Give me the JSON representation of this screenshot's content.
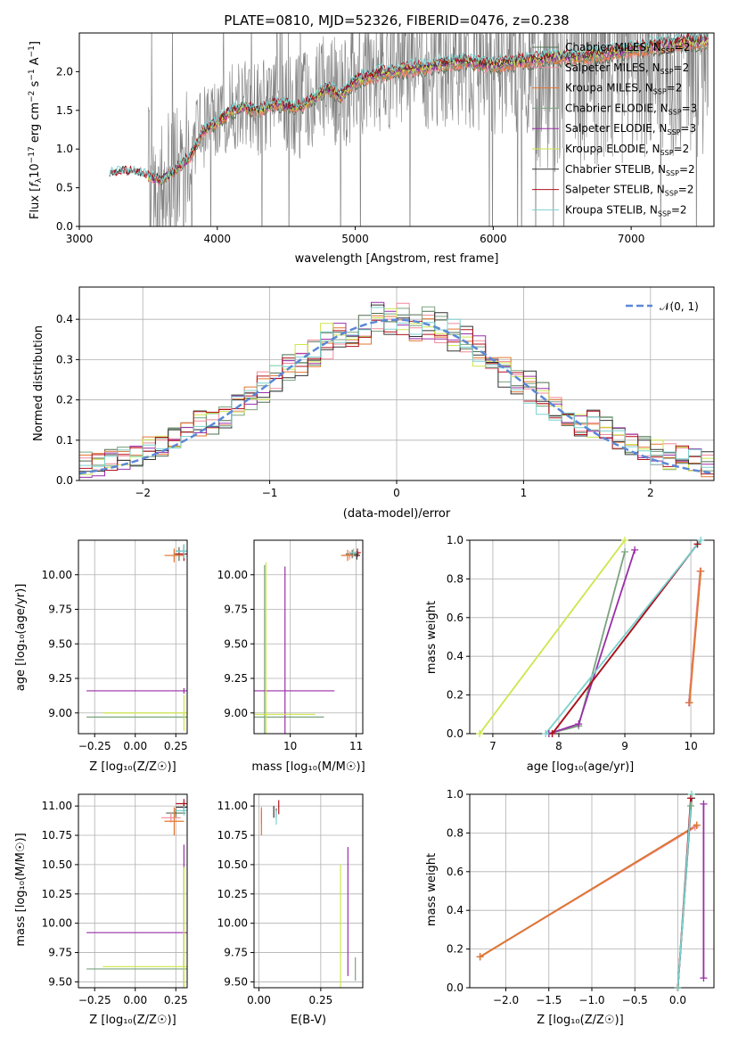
{
  "colors": {
    "grid": "#b0b0b0",
    "spectrum": "#7f7f7f",
    "gauss": "#5b88d6",
    "models": [
      "#4f6f52",
      "#f08a9a",
      "#e2762f",
      "#7aa37f",
      "#9a2ea7",
      "#cde64a",
      "#333333",
      "#b3121d",
      "#79d1cf"
    ]
  },
  "model_names": [
    "Chabrier MILES",
    "Salpeter MILES",
    "Kroupa MILES",
    "Chabrier ELODIE",
    "Salpeter ELODIE",
    "Kroupa ELODIE",
    "Chabrier STELIB",
    "Salpeter STELIB",
    "Kroupa STELIB"
  ],
  "nssp_suffix": [
    "=2",
    "=2",
    "=2",
    "=3",
    "=3",
    "=2",
    "=2",
    "=2",
    "=2"
  ],
  "chart_data": [
    {
      "id": "spectrum",
      "type": "line",
      "title": "PLATE=0810, MJD=52326, FIBERID=0476, z=0.238",
      "xlabel": "wavelength [Angstrom, rest frame]",
      "ylabel_parts": {
        "a": "Flux [",
        "b": "f",
        "c": "λ",
        "d": "10",
        "e": "−17",
        "f": " erg cm",
        "g": "−2",
        "h": " s",
        "i": "−1",
        "j": " A",
        "k": "−1",
        "l": "]"
      },
      "legend_sub": "SSP",
      "legend_prefix": "N",
      "xlim": [
        3000,
        7600
      ],
      "ylim": [
        0,
        2.5
      ],
      "xticks": [
        3000,
        4000,
        5000,
        6000,
        7000
      ],
      "yticks": [
        0.0,
        0.5,
        1.0,
        1.5,
        2.0
      ],
      "continuum": [
        [
          3220,
          0.7
        ],
        [
          3400,
          0.72
        ],
        [
          3600,
          0.6
        ],
        [
          3700,
          0.75
        ],
        [
          3800,
          0.9
        ],
        [
          3900,
          1.25
        ],
        [
          4000,
          1.35
        ],
        [
          4100,
          1.5
        ],
        [
          4200,
          1.55
        ],
        [
          4300,
          1.5
        ],
        [
          4400,
          1.6
        ],
        [
          4600,
          1.55
        ],
        [
          4800,
          1.8
        ],
        [
          4900,
          1.7
        ],
        [
          5000,
          1.9
        ],
        [
          5200,
          2.0
        ],
        [
          5400,
          2.05
        ],
        [
          5600,
          2.1
        ],
        [
          5800,
          2.15
        ],
        [
          6000,
          2.1
        ],
        [
          6200,
          2.15
        ],
        [
          6400,
          2.2
        ],
        [
          6600,
          2.2
        ],
        [
          6800,
          2.25
        ],
        [
          7000,
          2.3
        ],
        [
          7200,
          2.35
        ],
        [
          7400,
          2.4
        ]
      ]
    },
    {
      "id": "residuals",
      "type": "histogram",
      "xlabel": "(data-model)/error",
      "ylabel": "Normed distribution",
      "legend": "𝒩(0, 1)",
      "xlim": [
        -2.5,
        2.5
      ],
      "ylim": [
        0,
        0.48
      ],
      "xticks": [
        -2,
        -1,
        0,
        1,
        2
      ],
      "yticks": [
        0.0,
        0.1,
        0.2,
        0.3,
        0.4
      ],
      "bin_width": 0.1,
      "gauss_mean": 0,
      "gauss_sigma": 1
    },
    {
      "id": "z-age",
      "type": "scatter-errorbar",
      "xlabel": "Z [log₁₀(Z/Z☉)]",
      "ylabel": "age  [log₁₀(age/yr)]",
      "xlim": [
        -0.35,
        0.32
      ],
      "ylim": [
        8.85,
        10.25
      ],
      "xticks": [
        -0.25,
        0.0,
        0.25
      ],
      "xticklabels": [
        "−0.25",
        "0.00",
        "0.25"
      ],
      "yticks": [
        9.0,
        9.25,
        9.5,
        9.75,
        10.0
      ],
      "yticklabels": [
        "9.00",
        "9.25",
        "9.50",
        "9.75",
        "10.00"
      ],
      "points": [
        {
          "m": 0,
          "x": 0.27,
          "y": 10.15,
          "ex": 0.03,
          "ey": 0.05
        },
        {
          "m": 1,
          "x": 0.24,
          "y": 10.14,
          "ex": 0.05,
          "ey": 0.04
        },
        {
          "m": 2,
          "x": 0.24,
          "y": 10.14,
          "ex": 0.06,
          "ey": 0.05
        },
        {
          "m": 3,
          "x": 0.3,
          "y": 8.97,
          "ex": 0.6,
          "ey": 0.02
        },
        {
          "m": 4,
          "x": 0.3,
          "y": 9.16,
          "ex": 0.6,
          "ey": 0.02
        },
        {
          "m": 5,
          "x": 0.3,
          "y": 9.0,
          "ex": 0.5,
          "ey": 0.13
        },
        {
          "m": 6,
          "x": 0.3,
          "y": 10.17,
          "ex": 0.05,
          "ey": 0.05
        },
        {
          "m": 7,
          "x": 0.3,
          "y": 10.15,
          "ex": 0.05,
          "ey": 0.05
        },
        {
          "m": 8,
          "x": 0.3,
          "y": 10.17,
          "ex": 0.05,
          "ey": 0.05
        }
      ]
    },
    {
      "id": "mass-age",
      "type": "scatter-errorbar",
      "xlabel": "mass [log₁₀(M/M☉)]",
      "xlim": [
        9.45,
        11.1
      ],
      "ylim": [
        8.85,
        10.25
      ],
      "xticks": [
        10,
        11
      ],
      "xticklabels": [
        "10",
        "11"
      ],
      "yticks": [
        9.0,
        9.25,
        9.5,
        9.75,
        10.0
      ],
      "yticklabels": [
        "9.00",
        "9.25",
        "9.50",
        "9.75",
        "10.00"
      ],
      "points": [
        {
          "m": 0,
          "x": 10.94,
          "y": 10.15,
          "ex": 0.1,
          "ey": 0.03
        },
        {
          "m": 1,
          "x": 10.9,
          "y": 10.14,
          "ex": 0.1,
          "ey": 0.03
        },
        {
          "m": 2,
          "x": 10.87,
          "y": 10.14,
          "ex": 0.1,
          "ey": 0.04
        },
        {
          "m": 3,
          "x": 9.61,
          "y": 8.97,
          "ex": 0.9,
          "ey": 1.1
        },
        {
          "m": 4,
          "x": 9.92,
          "y": 9.16,
          "ex": 0.75,
          "ey": 0.9
        },
        {
          "m": 5,
          "x": 9.63,
          "y": 8.99,
          "ex": 0.75,
          "ey": 1.1
        },
        {
          "m": 6,
          "x": 11.01,
          "y": 10.14,
          "ex": 0.05,
          "ey": 0.03
        },
        {
          "m": 7,
          "x": 11.02,
          "y": 10.16,
          "ex": 0.05,
          "ey": 0.03
        },
        {
          "m": 8,
          "x": 10.96,
          "y": 10.16,
          "ex": 0.05,
          "ey": 0.03
        }
      ]
    },
    {
      "id": "age-weight",
      "type": "line",
      "xlabel": "age  [log₁₀(age/yr)]",
      "ylabel": "mass weight",
      "xlim": [
        6.65,
        10.35
      ],
      "ylim": [
        0,
        1.0
      ],
      "xticks": [
        7,
        8,
        9,
        10
      ],
      "yticks": [
        0.0,
        0.2,
        0.4,
        0.6,
        0.8,
        1.0
      ],
      "lines": [
        {
          "m": 0,
          "x": [
            9.97,
            10.15
          ],
          "y": [
            0.16,
            0.84
          ]
        },
        {
          "m": 1,
          "x": [
            9.97,
            10.14
          ],
          "y": [
            0.16,
            0.84
          ]
        },
        {
          "m": 2,
          "x": [
            9.98,
            10.15
          ],
          "y": [
            0.16,
            0.84
          ]
        },
        {
          "m": 3,
          "x": [
            7.85,
            8.3,
            9.0
          ],
          "y": [
            0.0,
            0.04,
            0.94
          ]
        },
        {
          "m": 4,
          "x": [
            7.85,
            8.3,
            9.15
          ],
          "y": [
            0.0,
            0.05,
            0.95
          ]
        },
        {
          "m": 5,
          "x": [
            6.8,
            9.0
          ],
          "y": [
            0.0,
            1.0
          ]
        },
        {
          "m": 6,
          "x": [
            7.9,
            10.1
          ],
          "y": [
            0.0,
            0.98
          ]
        },
        {
          "m": 7,
          "x": [
            7.9,
            10.1
          ],
          "y": [
            0.0,
            0.98
          ]
        },
        {
          "m": 8,
          "x": [
            7.8,
            10.15
          ],
          "y": [
            0.0,
            1.0
          ]
        }
      ]
    },
    {
      "id": "z-mass",
      "type": "scatter-errorbar",
      "xlabel": "Z [log₁₀(Z/Z☉)]",
      "ylabel": "mass [log₁₀(M/M☉)]",
      "xlim": [
        -0.35,
        0.32
      ],
      "ylim": [
        9.45,
        11.1
      ],
      "xticks": [
        -0.25,
        0.0,
        0.25
      ],
      "xticklabels": [
        "−0.25",
        "0.00",
        "0.25"
      ],
      "yticks": [
        9.5,
        9.75,
        10.0,
        10.25,
        10.5,
        10.75,
        11.0
      ],
      "yticklabels": [
        "9.50",
        "9.75",
        "10.00",
        "10.25",
        "10.50",
        "10.75",
        "11.00"
      ],
      "points": [
        {
          "m": 0,
          "x": 0.25,
          "y": 10.94,
          "ex": 0.06,
          "ey": 0.04
        },
        {
          "m": 1,
          "x": 0.22,
          "y": 10.9,
          "ex": 0.06,
          "ey": 0.04
        },
        {
          "m": 2,
          "x": 0.24,
          "y": 10.87,
          "ex": 0.06,
          "ey": 0.12
        },
        {
          "m": 3,
          "x": 0.3,
          "y": 9.61,
          "ex": 0.6,
          "ey": 0.1
        },
        {
          "m": 4,
          "x": 0.3,
          "y": 9.92,
          "ex": 0.6,
          "ey": 0.75
        },
        {
          "m": 5,
          "x": 0.3,
          "y": 9.63,
          "ex": 0.5,
          "ey": 0.85
        },
        {
          "m": 6,
          "x": 0.3,
          "y": 10.99,
          "ex": 0.05,
          "ey": 0.04
        },
        {
          "m": 7,
          "x": 0.3,
          "y": 11.02,
          "ex": 0.05,
          "ey": 0.04
        },
        {
          "m": 8,
          "x": 0.3,
          "y": 10.96,
          "ex": 0.05,
          "ey": 0.04
        }
      ]
    },
    {
      "id": "ebv-mass",
      "type": "scatter-errorbar",
      "xlabel": "E(B-V)",
      "xlim": [
        -0.02,
        0.42
      ],
      "ylim": [
        9.45,
        11.1
      ],
      "xticks": [
        0.0,
        0.25
      ],
      "xticklabels": [
        "0.00",
        "0.25"
      ],
      "yticks": [
        9.5,
        9.75,
        10.0,
        10.25,
        10.5,
        10.75,
        11.0
      ],
      "yticklabels": [
        "9.50",
        "9.75",
        "10.00",
        "10.25",
        "10.50",
        "10.75",
        "11.00"
      ],
      "points": [
        {
          "m": 0,
          "x": 0.07,
          "y": 10.94,
          "ex": 0.0,
          "ey": 0.04
        },
        {
          "m": 1,
          "x": 0.01,
          "y": 10.9,
          "ex": 0.0,
          "ey": 0.06
        },
        {
          "m": 2,
          "x": 0.01,
          "y": 10.87,
          "ex": 0.0,
          "ey": 0.12
        },
        {
          "m": 3,
          "x": 0.39,
          "y": 9.61,
          "ex": 0.0,
          "ey": 0.1
        },
        {
          "m": 4,
          "x": 0.36,
          "y": 10.1,
          "ex": 0.0,
          "ey": 0.55
        },
        {
          "m": 5,
          "x": 0.33,
          "y": 9.95,
          "ex": 0.0,
          "ey": 0.55
        },
        {
          "m": 6,
          "x": 0.06,
          "y": 10.95,
          "ex": 0.0,
          "ey": 0.05
        },
        {
          "m": 7,
          "x": 0.08,
          "y": 10.99,
          "ex": 0.0,
          "ey": 0.06
        },
        {
          "m": 8,
          "x": 0.07,
          "y": 10.9,
          "ex": 0.0,
          "ey": 0.06
        }
      ]
    },
    {
      "id": "z-weight",
      "type": "line",
      "xlabel": "Z [log₁₀(Z/Z☉)]",
      "ylabel": "mass weight",
      "xlim": [
        -2.42,
        0.42
      ],
      "ylim": [
        0,
        1.0
      ],
      "xticks": [
        -2.0,
        -1.5,
        -1.0,
        -0.5,
        0.0
      ],
      "xticklabels": [
        "−2.0",
        "−1.5",
        "−1.0",
        "−0.5",
        "0.0"
      ],
      "yticks": [
        0.0,
        0.2,
        0.4,
        0.6,
        0.8,
        1.0
      ],
      "lines": [
        {
          "m": 0,
          "x": [
            -2.3,
            0.22
          ],
          "y": [
            0.16,
            0.84
          ]
        },
        {
          "m": 1,
          "x": [
            -2.3,
            0.2
          ],
          "y": [
            0.16,
            0.83
          ]
        },
        {
          "m": 2,
          "x": [
            -2.3,
            0.22
          ],
          "y": [
            0.16,
            0.84
          ]
        },
        {
          "m": 3,
          "x": [
            0.0,
            0.15
          ],
          "y": [
            0.0,
            0.94
          ]
        },
        {
          "m": 4,
          "x": [
            0.3,
            0.3
          ],
          "y": [
            0.05,
            0.95
          ]
        },
        {
          "m": 5,
          "x": [
            0.0,
            0.16
          ],
          "y": [
            0.0,
            1.0
          ]
        },
        {
          "m": 6,
          "x": [
            0.0,
            0.16
          ],
          "y": [
            0.0,
            0.98
          ]
        },
        {
          "m": 7,
          "x": [
            0.0,
            0.15
          ],
          "y": [
            0.0,
            0.98
          ]
        },
        {
          "m": 8,
          "x": [
            0.0,
            0.16
          ],
          "y": [
            0.0,
            1.0
          ]
        }
      ]
    }
  ]
}
